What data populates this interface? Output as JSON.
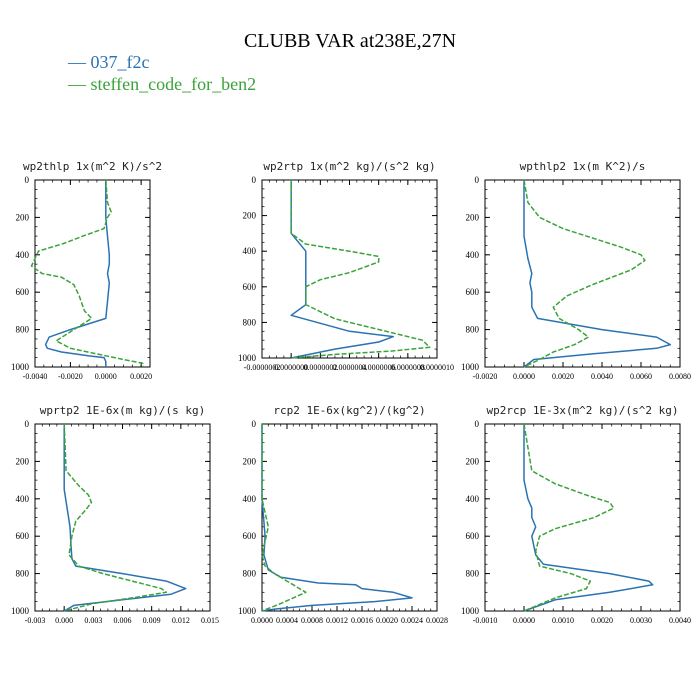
{
  "title": "CLUBB VAR at238E,27N",
  "legend": [
    {
      "label": "— 037_f2c",
      "color": "#2a73b2"
    },
    {
      "label": "— steffen_code_for_ben2",
      "color": "#3aa33a"
    }
  ],
  "chart_data": [
    {
      "type": "line",
      "title": "wp2thlp   1x(m^2 K)/s^2",
      "xlim": [
        -0.004,
        0.0025
      ],
      "ylim": [
        1000,
        0
      ],
      "xticks": [
        "-0.0040",
        "-0.0020",
        "0.0000",
        "0.0020"
      ],
      "xtick_values": [
        -0.004,
        -0.002,
        0.0,
        0.002
      ],
      "yticks": [
        0,
        200,
        400,
        600,
        800,
        1000
      ],
      "series": [
        {
          "name": "037_f2c",
          "color": "#2a73b2",
          "dashed": false,
          "x": [
            0.0,
            0.0,
            0.0001,
            0.0002,
            0.0002,
            0.0001,
            0.0002,
            0.0001,
            0.0,
            -0.002,
            -0.0032,
            -0.0034,
            -0.0033,
            -0.0025,
            -0.001,
            -0.0001,
            0.0,
            0.0
          ],
          "y": [
            0,
            200,
            300,
            400,
            450,
            500,
            550,
            650,
            740,
            800,
            840,
            880,
            900,
            920,
            940,
            950,
            970,
            1000
          ]
        },
        {
          "name": "steffen_code_for_ben2",
          "color": "#3aa33a",
          "dashed": true,
          "x": [
            0.0,
            0.0001,
            0.0003,
            0.0001,
            -0.0001,
            -0.0013,
            -0.0024,
            -0.0038,
            -0.0042,
            -0.0036,
            -0.0025,
            -0.0018,
            -0.0015,
            -0.0012,
            -0.0008,
            -0.0018,
            -0.0028,
            -0.002,
            0.0,
            0.001,
            0.0021,
            0.0021
          ],
          "y": [
            0,
            120,
            170,
            200,
            260,
            300,
            340,
            380,
            460,
            500,
            520,
            560,
            620,
            700,
            740,
            800,
            860,
            900,
            940,
            960,
            980,
            1000
          ]
        }
      ]
    },
    {
      "type": "line",
      "title": "wp2rtp   1x(m^2 kg)/(s^2 kg)",
      "xlim": [
        -2e-07,
        1e-06
      ],
      "ylim": [
        1000,
        0
      ],
      "xticks": [
        "-0.0000002",
        "0.0000000",
        "0.0000002",
        "0.0000004",
        "0.0000006",
        "0.0000008",
        "0.0000010"
      ],
      "xtick_values": [
        -2e-07,
        0.0,
        2e-07,
        4e-07,
        6e-07,
        8e-07,
        1e-06
      ],
      "yticks": [
        0,
        200,
        400,
        600,
        800,
        1000
      ],
      "series": [
        {
          "name": "037_f2c",
          "color": "#2a73b2",
          "dashed": false,
          "x": [
            0.0,
            0.0,
            1e-07,
            1e-07,
            1e-07,
            0.0,
            4e-07,
            7e-07,
            6e-07,
            3e-07,
            0.0
          ],
          "y": [
            0,
            300,
            400,
            600,
            700,
            760,
            850,
            880,
            910,
            950,
            1000
          ]
        },
        {
          "name": "steffen_code_for_ben2",
          "color": "#3aa33a",
          "dashed": true,
          "x": [
            0.0,
            0.0,
            1e-07,
            4e-07,
            6e-07,
            6e-07,
            4e-07,
            2e-07,
            1e-07,
            1e-07,
            3e-07,
            6e-07,
            9e-07,
            9.5e-07,
            7e-07,
            3e-07,
            0.0
          ],
          "y": [
            0,
            300,
            360,
            400,
            430,
            460,
            520,
            560,
            600,
            700,
            780,
            840,
            900,
            940,
            960,
            980,
            1000
          ]
        }
      ]
    },
    {
      "type": "line",
      "title": "wpthlp2   1x(m K^2)/s",
      "xlim": [
        -0.002,
        0.008
      ],
      "ylim": [
        1000,
        0
      ],
      "xticks": [
        "-0.0020",
        "0.0000",
        "0.0020",
        "0.0040",
        "0.0060",
        "0.0080"
      ],
      "xtick_values": [
        -0.002,
        0.0,
        0.002,
        0.004,
        0.006,
        0.008
      ],
      "yticks": [
        0,
        200,
        400,
        600,
        800,
        1000
      ],
      "series": [
        {
          "name": "037_f2c",
          "color": "#2a73b2",
          "dashed": false,
          "x": [
            0.0,
            0.0,
            0.0002,
            0.0004,
            0.0003,
            0.0004,
            0.0004,
            0.0007,
            0.004,
            0.0068,
            0.0075,
            0.0068,
            0.0035,
            0.0005,
            0.0
          ],
          "y": [
            0,
            300,
            420,
            500,
            550,
            600,
            680,
            740,
            800,
            840,
            880,
            900,
            930,
            960,
            1000
          ]
        },
        {
          "name": "steffen_code_for_ben2",
          "color": "#3aa33a",
          "dashed": true,
          "x": [
            0.0,
            0.0002,
            0.0008,
            0.002,
            0.0038,
            0.005,
            0.006,
            0.0062,
            0.0055,
            0.0035,
            0.0022,
            0.0015,
            0.0018,
            0.0028,
            0.0033,
            0.0026,
            0.0015,
            0.0008,
            0.0
          ],
          "y": [
            0,
            120,
            200,
            260,
            320,
            360,
            400,
            430,
            480,
            560,
            620,
            680,
            740,
            800,
            840,
            880,
            920,
            960,
            1000
          ]
        }
      ]
    },
    {
      "type": "line",
      "title": "wprtp2   1E-6x(m kg)/(s kg)",
      "xlim": [
        -0.003,
        0.015
      ],
      "ylim": [
        1000,
        0
      ],
      "xticks": [
        "-0.003",
        "0.000",
        "0.003",
        "0.006",
        "0.009",
        "0.012",
        "0.015"
      ],
      "xtick_values": [
        -0.003,
        0.0,
        0.003,
        0.006,
        0.009,
        0.012,
        0.015
      ],
      "yticks": [
        0,
        200,
        400,
        600,
        800,
        1000
      ],
      "series": [
        {
          "name": "037_f2c",
          "color": "#2a73b2",
          "dashed": false,
          "x": [
            0.0,
            0.0,
            0.0003,
            0.0006,
            0.0007,
            0.0008,
            0.0012,
            0.006,
            0.0105,
            0.0125,
            0.011,
            0.006,
            0.001,
            0.0
          ],
          "y": [
            0,
            350,
            450,
            550,
            650,
            720,
            760,
            800,
            840,
            880,
            910,
            940,
            970,
            1000
          ]
        },
        {
          "name": "steffen_code_for_ben2",
          "color": "#3aa33a",
          "dashed": true,
          "x": [
            0.0,
            0.0002,
            0.0015,
            0.0025,
            0.0028,
            0.0022,
            0.0012,
            0.0008,
            0.0005,
            0.0015,
            0.004,
            0.007,
            0.01,
            0.0105,
            0.007,
            0.003,
            0.0
          ],
          "y": [
            0,
            250,
            330,
            380,
            420,
            460,
            520,
            600,
            700,
            760,
            800,
            840,
            880,
            900,
            930,
            960,
            1000
          ]
        }
      ]
    },
    {
      "type": "line",
      "title": "rcp2   1E-6x(kg^2)/(kg^2)",
      "xlim": [
        0.0,
        0.0028
      ],
      "ylim": [
        1000,
        0
      ],
      "xticks": [
        "0.0000",
        "0.0004",
        "0.0008",
        "0.0012",
        "0.0016",
        "0.0020",
        "0.0024",
        "0.0028"
      ],
      "xtick_values": [
        0.0,
        0.0004,
        0.0008,
        0.0012,
        0.0016,
        0.002,
        0.0024,
        0.0028
      ],
      "yticks": [
        0,
        200,
        400,
        600,
        800,
        1000
      ],
      "series": [
        {
          "name": "037_f2c",
          "color": "#2a73b2",
          "dashed": false,
          "x": [
            0.0,
            0.0,
            5e-05,
            3e-05,
            0.0001,
            0.0003,
            0.0009,
            0.0015,
            0.0016,
            0.0021,
            0.0024,
            0.0018,
            0.0008,
            0.0002,
            0.0
          ],
          "y": [
            0,
            400,
            600,
            700,
            780,
            820,
            850,
            860,
            880,
            900,
            930,
            950,
            970,
            990,
            1000
          ]
        },
        {
          "name": "steffen_code_for_ben2",
          "color": "#3aa33a",
          "dashed": true,
          "x": [
            0.0,
            0.0,
            0.0001,
            0.0,
            5e-05,
            0.0002,
            0.0004,
            0.0005,
            0.0006,
            0.0007,
            0.0005,
            0.0003,
            0.0
          ],
          "y": [
            0,
            400,
            550,
            700,
            760,
            800,
            840,
            860,
            880,
            900,
            930,
            960,
            1000
          ]
        }
      ]
    },
    {
      "type": "line",
      "title": "wp2rcp   1E-3x(m^2 kg)/(s^2 kg)",
      "xlim": [
        -0.001,
        0.004
      ],
      "ylim": [
        1000,
        0
      ],
      "xticks": [
        "-0.0010",
        "0.0000",
        "0.0010",
        "0.0020",
        "0.0030",
        "0.0040"
      ],
      "xtick_values": [
        -0.001,
        0.0,
        0.001,
        0.002,
        0.003,
        0.004
      ],
      "yticks": [
        0,
        200,
        400,
        600,
        800,
        1000
      ],
      "series": [
        {
          "name": "037_f2c",
          "color": "#2a73b2",
          "dashed": false,
          "x": [
            0.0,
            0.0,
            0.0001,
            0.0002,
            0.0002,
            0.0003,
            0.0002,
            0.0003,
            0.0005,
            0.0022,
            0.0032,
            0.0033,
            0.0022,
            0.0008,
            0.0
          ],
          "y": [
            0,
            300,
            400,
            450,
            500,
            550,
            600,
            700,
            750,
            800,
            840,
            860,
            900,
            940,
            1000
          ]
        },
        {
          "name": "steffen_code_for_ben2",
          "color": "#3aa33a",
          "dashed": true,
          "x": [
            0.0,
            0.0002,
            0.0008,
            0.0016,
            0.0022,
            0.0023,
            0.0018,
            0.0008,
            0.0004,
            0.0003,
            0.0004,
            0.0012,
            0.0017,
            0.0016,
            0.0008,
            0.0
          ],
          "y": [
            0,
            250,
            320,
            380,
            420,
            450,
            500,
            560,
            600,
            680,
            760,
            800,
            840,
            880,
            930,
            1000
          ]
        }
      ]
    }
  ]
}
